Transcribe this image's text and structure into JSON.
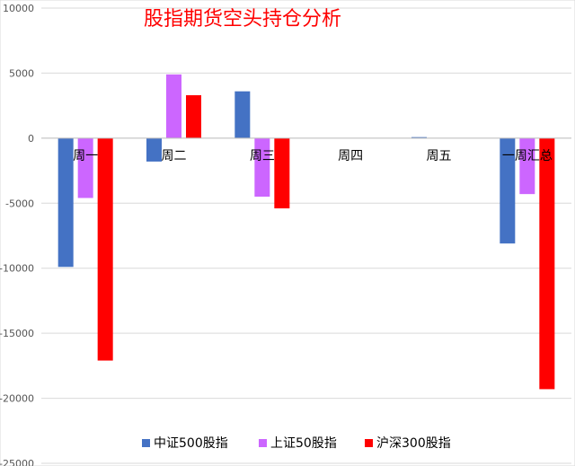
{
  "chart_data": {
    "type": "bar",
    "title": "股指期货空头持仓分析",
    "xlabel": "",
    "ylabel": "",
    "categories": [
      "周一",
      "周二",
      "周三",
      "周四",
      "周五",
      "一周汇总"
    ],
    "ylim": [
      -25000,
      10000
    ],
    "yticks": [
      10000,
      5000,
      0,
      -5000,
      -10000,
      -15000,
      -20000,
      -25000
    ],
    "ytick_labels": [
      "10000",
      "5000",
      "0",
      "-5000",
      "-10000",
      "-15000",
      "-20000",
      "-25000"
    ],
    "grid": true,
    "legend_position": "bottom",
    "series": [
      {
        "name": "中证500股指",
        "color": "#4472c4",
        "values": [
          -9900,
          -1800,
          3600,
          0,
          80,
          -8100
        ]
      },
      {
        "name": "上证50股指",
        "color": "#cc66ff",
        "values": [
          -4600,
          4900,
          -4500,
          0,
          0,
          -4300
        ]
      },
      {
        "name": "沪深300股指",
        "color": "#ff0000",
        "values": [
          -17100,
          3300,
          -5400,
          0,
          0,
          -19300
        ]
      }
    ]
  }
}
